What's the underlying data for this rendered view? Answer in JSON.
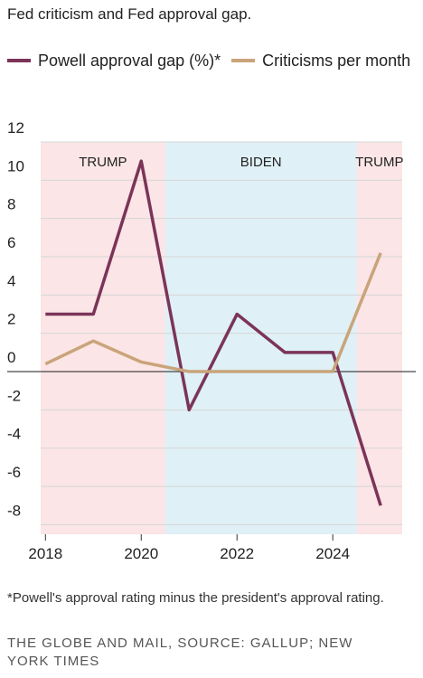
{
  "chart_data": {
    "type": "line",
    "title": "Fed criticism and Fed approval gap.",
    "x": [
      2018,
      2019,
      2020,
      2021,
      2022,
      2023,
      2024,
      2025
    ],
    "series": [
      {
        "name": "Powell approval gap (%)*",
        "color": "#7b3458",
        "values": [
          3,
          3,
          11,
          -2,
          3,
          1,
          1,
          -7
        ]
      },
      {
        "name": "Criticisms per month",
        "color": "#c9a47a",
        "values": [
          0.4,
          1.6,
          0.5,
          0,
          0,
          0,
          0,
          6.2
        ]
      }
    ],
    "periods": [
      {
        "label": "TRUMP",
        "start": 2017.9,
        "end": 2020.5,
        "color": "#fbe5e6"
      },
      {
        "label": "BIDEN",
        "start": 2020.5,
        "end": 2024.5,
        "color": "#dff0f6"
      },
      {
        "label": "TRUMP",
        "start": 2024.5,
        "end": 2025.45,
        "color": "#fbe5e6"
      }
    ],
    "xlim": [
      2017.9,
      2025.45
    ],
    "ylim": [
      -8.5,
      12
    ],
    "xticks": [
      2018,
      2020,
      2022,
      2024
    ],
    "yticks": [
      -8,
      -6,
      -4,
      -2,
      0,
      2,
      4,
      6,
      8,
      10,
      12
    ],
    "grid": true,
    "note": "*Powell's approval rating minus the president's approval rating.",
    "source": "THE GLOBE AND MAIL, SOURCE: GALLUP; NEW YORK TIMES"
  }
}
